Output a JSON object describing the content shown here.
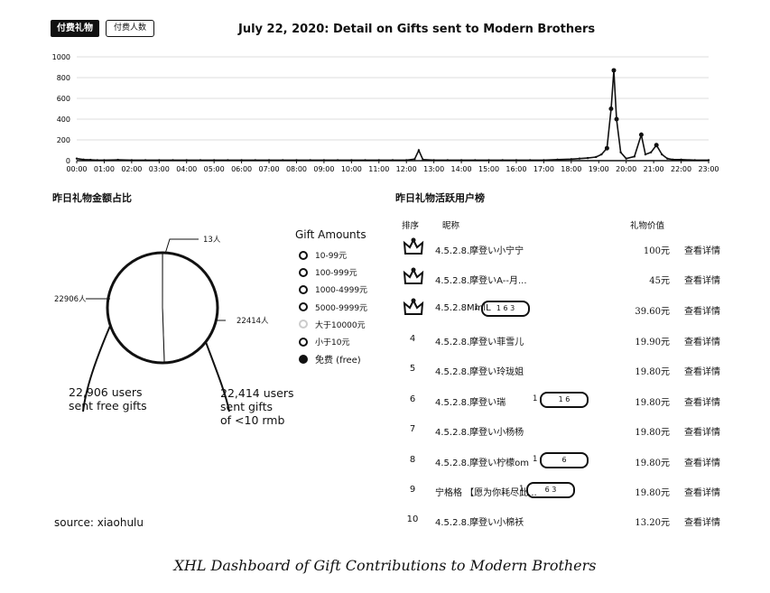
{
  "tabs": {
    "active": "付费礼物",
    "other": "付费人数"
  },
  "title": "July 22, 2020:  Detail on Gifts sent to Modern Brothers",
  "chart_data": [
    {
      "type": "line",
      "ylim": [
        0,
        1000
      ],
      "yticks": [
        "0",
        "200",
        "400",
        "600",
        "800",
        "1000"
      ],
      "xticks": [
        "00:00",
        "01:00",
        "02:00",
        "03:00",
        "04:00",
        "05:00",
        "06:00",
        "07:00",
        "08:00",
        "09:00",
        "10:00",
        "11:00",
        "12:00",
        "13:00",
        "14:00",
        "15:00",
        "16:00",
        "17:00",
        "18:00",
        "19:00",
        "20:00",
        "21:00",
        "22:00",
        "23:00"
      ],
      "x": [
        0,
        0.25,
        0.5,
        0.75,
        1,
        1.5,
        2,
        2.5,
        3,
        3.5,
        4,
        4.5,
        5,
        5.5,
        6,
        6.5,
        7,
        7.5,
        8,
        8.5,
        9,
        9.5,
        10,
        10.5,
        11,
        11.5,
        12,
        12.3,
        12.45,
        12.6,
        13,
        13.5,
        14,
        14.5,
        15,
        15.5,
        16,
        16.5,
        17,
        17.5,
        18,
        18.3,
        18.6,
        18.9,
        19.1,
        19.3,
        19.45,
        19.55,
        19.65,
        19.8,
        20,
        20.3,
        20.55,
        20.7,
        20.9,
        21.1,
        21.3,
        21.5,
        21.7,
        22,
        22.5,
        23
      ],
      "y": [
        20,
        10,
        8,
        5,
        5,
        8,
        5,
        5,
        5,
        5,
        5,
        5,
        5,
        5,
        5,
        5,
        5,
        5,
        5,
        5,
        5,
        5,
        5,
        5,
        5,
        5,
        5,
        15,
        100,
        10,
        5,
        5,
        5,
        5,
        5,
        5,
        5,
        5,
        5,
        10,
        15,
        20,
        25,
        35,
        60,
        120,
        500,
        870,
        400,
        80,
        20,
        40,
        250,
        60,
        80,
        150,
        60,
        20,
        10,
        10,
        5,
        5
      ]
    },
    {
      "type": "pie",
      "title": "昨日礼物金额占比",
      "legend_title": "Gift Amounts",
      "legend": [
        "10-99元",
        "100-999元",
        "1000-4999元",
        "5000-9999元",
        "大于10000元",
        "小于10元",
        "免费  (free)"
      ],
      "slices": [
        {
          "label": "13人",
          "value": 13
        },
        {
          "label": "22414人",
          "value": 22414
        },
        {
          "label": "22906人",
          "value": 22906
        }
      ]
    }
  ],
  "annotations": {
    "free": "22,906 users\nsent free gifts",
    "under10": "22,414 users\nsent gifts\nof <10 rmb"
  },
  "ranking": {
    "title": "昨日礼物活跃用户榜",
    "headers": {
      "rank": "排序",
      "nickname": "昵称",
      "value": "礼物价值"
    },
    "rows": [
      {
        "rank": "1",
        "name": "4.5.2.8.摩登い小宁宁",
        "badge_num": "",
        "badge": "",
        "value": "100元",
        "detail": "查看详情"
      },
      {
        "rank": "2",
        "name": "4.5.2.8.摩登いA--月...",
        "badge_num": "",
        "badge": "",
        "value": "45元",
        "detail": "查看详情"
      },
      {
        "rank": "3",
        "name": "4.5.2.8MmlL",
        "badge_num": "1",
        "badge": "1 6 3",
        "value": "39.60元",
        "detail": "查看详情"
      },
      {
        "rank": "4",
        "name": "4.5.2.8.摩登い菲雪儿",
        "badge_num": "",
        "badge": "",
        "value": "19.90元",
        "detail": "查看详情"
      },
      {
        "rank": "5",
        "name": "4.5.2.8.摩登い玲珑姐",
        "badge_num": "",
        "badge": "",
        "value": "19.80元",
        "detail": "查看详情"
      },
      {
        "rank": "6",
        "name": "4.5.2.8.摩登い瑞",
        "badge_num": "1",
        "badge": "1 6",
        "value": "19.80元",
        "detail": "查看详情"
      },
      {
        "rank": "7",
        "name": "4.5.2.8.摩登い小杨杨",
        "badge_num": "",
        "badge": "",
        "value": "19.80元",
        "detail": "查看详情"
      },
      {
        "rank": "8",
        "name": "4.5.2.8.摩登い柠檬om",
        "badge_num": "1",
        "badge": "6",
        "value": "19.80元",
        "detail": "查看详情"
      },
      {
        "rank": "9",
        "name": "宁格格 【愿为你耗尽此...",
        "badge_num": "1",
        "badge": "6 3",
        "value": "19.80元",
        "detail": "查看详情"
      },
      {
        "rank": "10",
        "name": "4.5.2.8.摩登い小棉袄",
        "badge_num": "",
        "badge": "",
        "value": "13.20元",
        "detail": "查看详情"
      }
    ]
  },
  "source": "source: xiaohulu",
  "caption": "XHL Dashboard of Gift Contributions to Modern Brothers"
}
